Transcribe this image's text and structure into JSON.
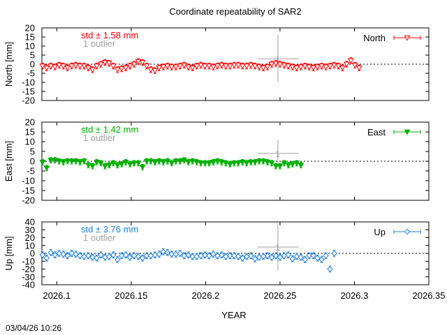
{
  "chart_data": {
    "type": "scatter",
    "title": "Coordinate repeatability of SAR2",
    "xlabel": "YEAR",
    "xlim": [
      2026.09,
      2026.35
    ],
    "x_ticks": [
      2026.1,
      2026.15,
      2026.2,
      2026.25,
      2026.3,
      2026.35
    ],
    "x_tick_labels": [
      "2026.1",
      "2026.15",
      "2026.2",
      "2026.25",
      "2026.3",
      "2026.35"
    ],
    "timestamp": "03/04/26 10:26",
    "x_start": 2026.0904,
    "x_step": 0.0028,
    "outlier_x": 2026.2486,
    "panels": [
      {
        "name": "North",
        "ylabel": "North [mm]",
        "ylim": [
          -20,
          20
        ],
        "y_ticks": [
          -20,
          -15,
          -10,
          -5,
          0,
          5,
          10,
          15,
          20
        ],
        "color": "#ff0000",
        "marker": "triangle-down-open",
        "std_label": "std ± 1.58 mm",
        "outlier_label": "1 outlier",
        "legend": "North",
        "error": 1.6,
        "values": [
          -1,
          -2,
          -1,
          -1.5,
          -0.5,
          -1,
          -2,
          -1,
          -0.5,
          -1,
          -1,
          -2,
          -3,
          -1,
          0,
          1,
          0.5,
          -1,
          -3,
          -2.5,
          -2,
          -1,
          0,
          1.5,
          1,
          -1,
          -3,
          -3.5,
          -2,
          -1.5,
          -1,
          -1.5,
          -1.5,
          -1,
          -0.5,
          -1.5,
          -2,
          -1,
          -0.5,
          -1,
          -1,
          -1.5,
          -1,
          -0.5,
          -1,
          -1,
          -0.5,
          -0.5,
          -1,
          -1,
          -0.5,
          -1,
          -1.5,
          -2,
          -1.5,
          0,
          0.5,
          0,
          -0.5,
          -1,
          -1.5,
          -2,
          -1.5,
          -1,
          -1.5,
          -2,
          -1.5,
          -1,
          -1.5,
          -1,
          -0.5,
          -1,
          -2,
          0,
          2,
          -0.5,
          -2
        ],
        "outlier": {
          "y": 3,
          "err": 13
        }
      },
      {
        "name": "East",
        "ylabel": "East [mm]",
        "ylim": [
          -20,
          20
        ],
        "y_ticks": [
          -20,
          -15,
          -10,
          -5,
          0,
          5,
          10,
          15,
          20
        ],
        "color": "#00b000",
        "marker": "triangle-down-filled",
        "std_label": "std ± 1.42 mm",
        "outlier_label": "1 outlier",
        "legend": "East",
        "error": 1.4,
        "values": [
          -0.5,
          -3.5,
          0.5,
          0.5,
          0,
          -0.5,
          0,
          0,
          0,
          -0.5,
          0,
          -2,
          -2.5,
          -0.5,
          -1,
          -2.5,
          -2,
          -1,
          -2,
          -1.5,
          -0.5,
          -1.5,
          -1,
          -1,
          -3,
          0,
          0,
          -0.5,
          0,
          -0.5,
          0,
          -1,
          0,
          0,
          0.5,
          -0.5,
          0,
          -0.5,
          -1,
          -1,
          -1,
          -0.5,
          0,
          -0.5,
          -1,
          -1.5,
          -1,
          -1,
          -0.5,
          -1,
          -0.5,
          -0.5,
          0,
          0,
          -0.5,
          -1,
          -2.5,
          -2.5,
          -1,
          -2,
          -1.5,
          -1,
          -2
        ],
        "outlier": {
          "y": 4,
          "err": 7
        }
      },
      {
        "name": "Up",
        "ylabel": "Up [mm]",
        "ylim": [
          -40,
          40
        ],
        "y_ticks": [
          -40,
          -30,
          -20,
          -10,
          0,
          10,
          20,
          30,
          40
        ],
        "color": "#2080e0",
        "marker": "diamond-open",
        "std_label": "std ± 3.76 mm",
        "outlier_label": "1 outlier",
        "legend": "Up",
        "error": 3.8,
        "values": [
          -2,
          -6,
          1,
          -2,
          0,
          -1,
          -3,
          0,
          -1,
          -3,
          -4,
          -3,
          -5,
          -6,
          -2,
          -5,
          -4,
          -2,
          -8,
          -3,
          -2,
          -5,
          -3,
          -4,
          -6,
          -3,
          -3,
          -2,
          -1,
          2,
          1,
          -1,
          -1,
          0,
          -3,
          -2,
          -4,
          -4,
          -3,
          -2,
          -3,
          -1,
          -3,
          -2,
          -4,
          -3,
          -3,
          -4,
          -6,
          -4,
          -3,
          -7,
          -5,
          -4,
          -3,
          -5,
          -3,
          -5,
          -3,
          -2,
          -7,
          -4,
          -5,
          -8,
          -3,
          -3,
          -6,
          -8,
          -3,
          -20,
          0
        ],
        "outlier": {
          "y": 8,
          "err": 30
        }
      }
    ]
  }
}
